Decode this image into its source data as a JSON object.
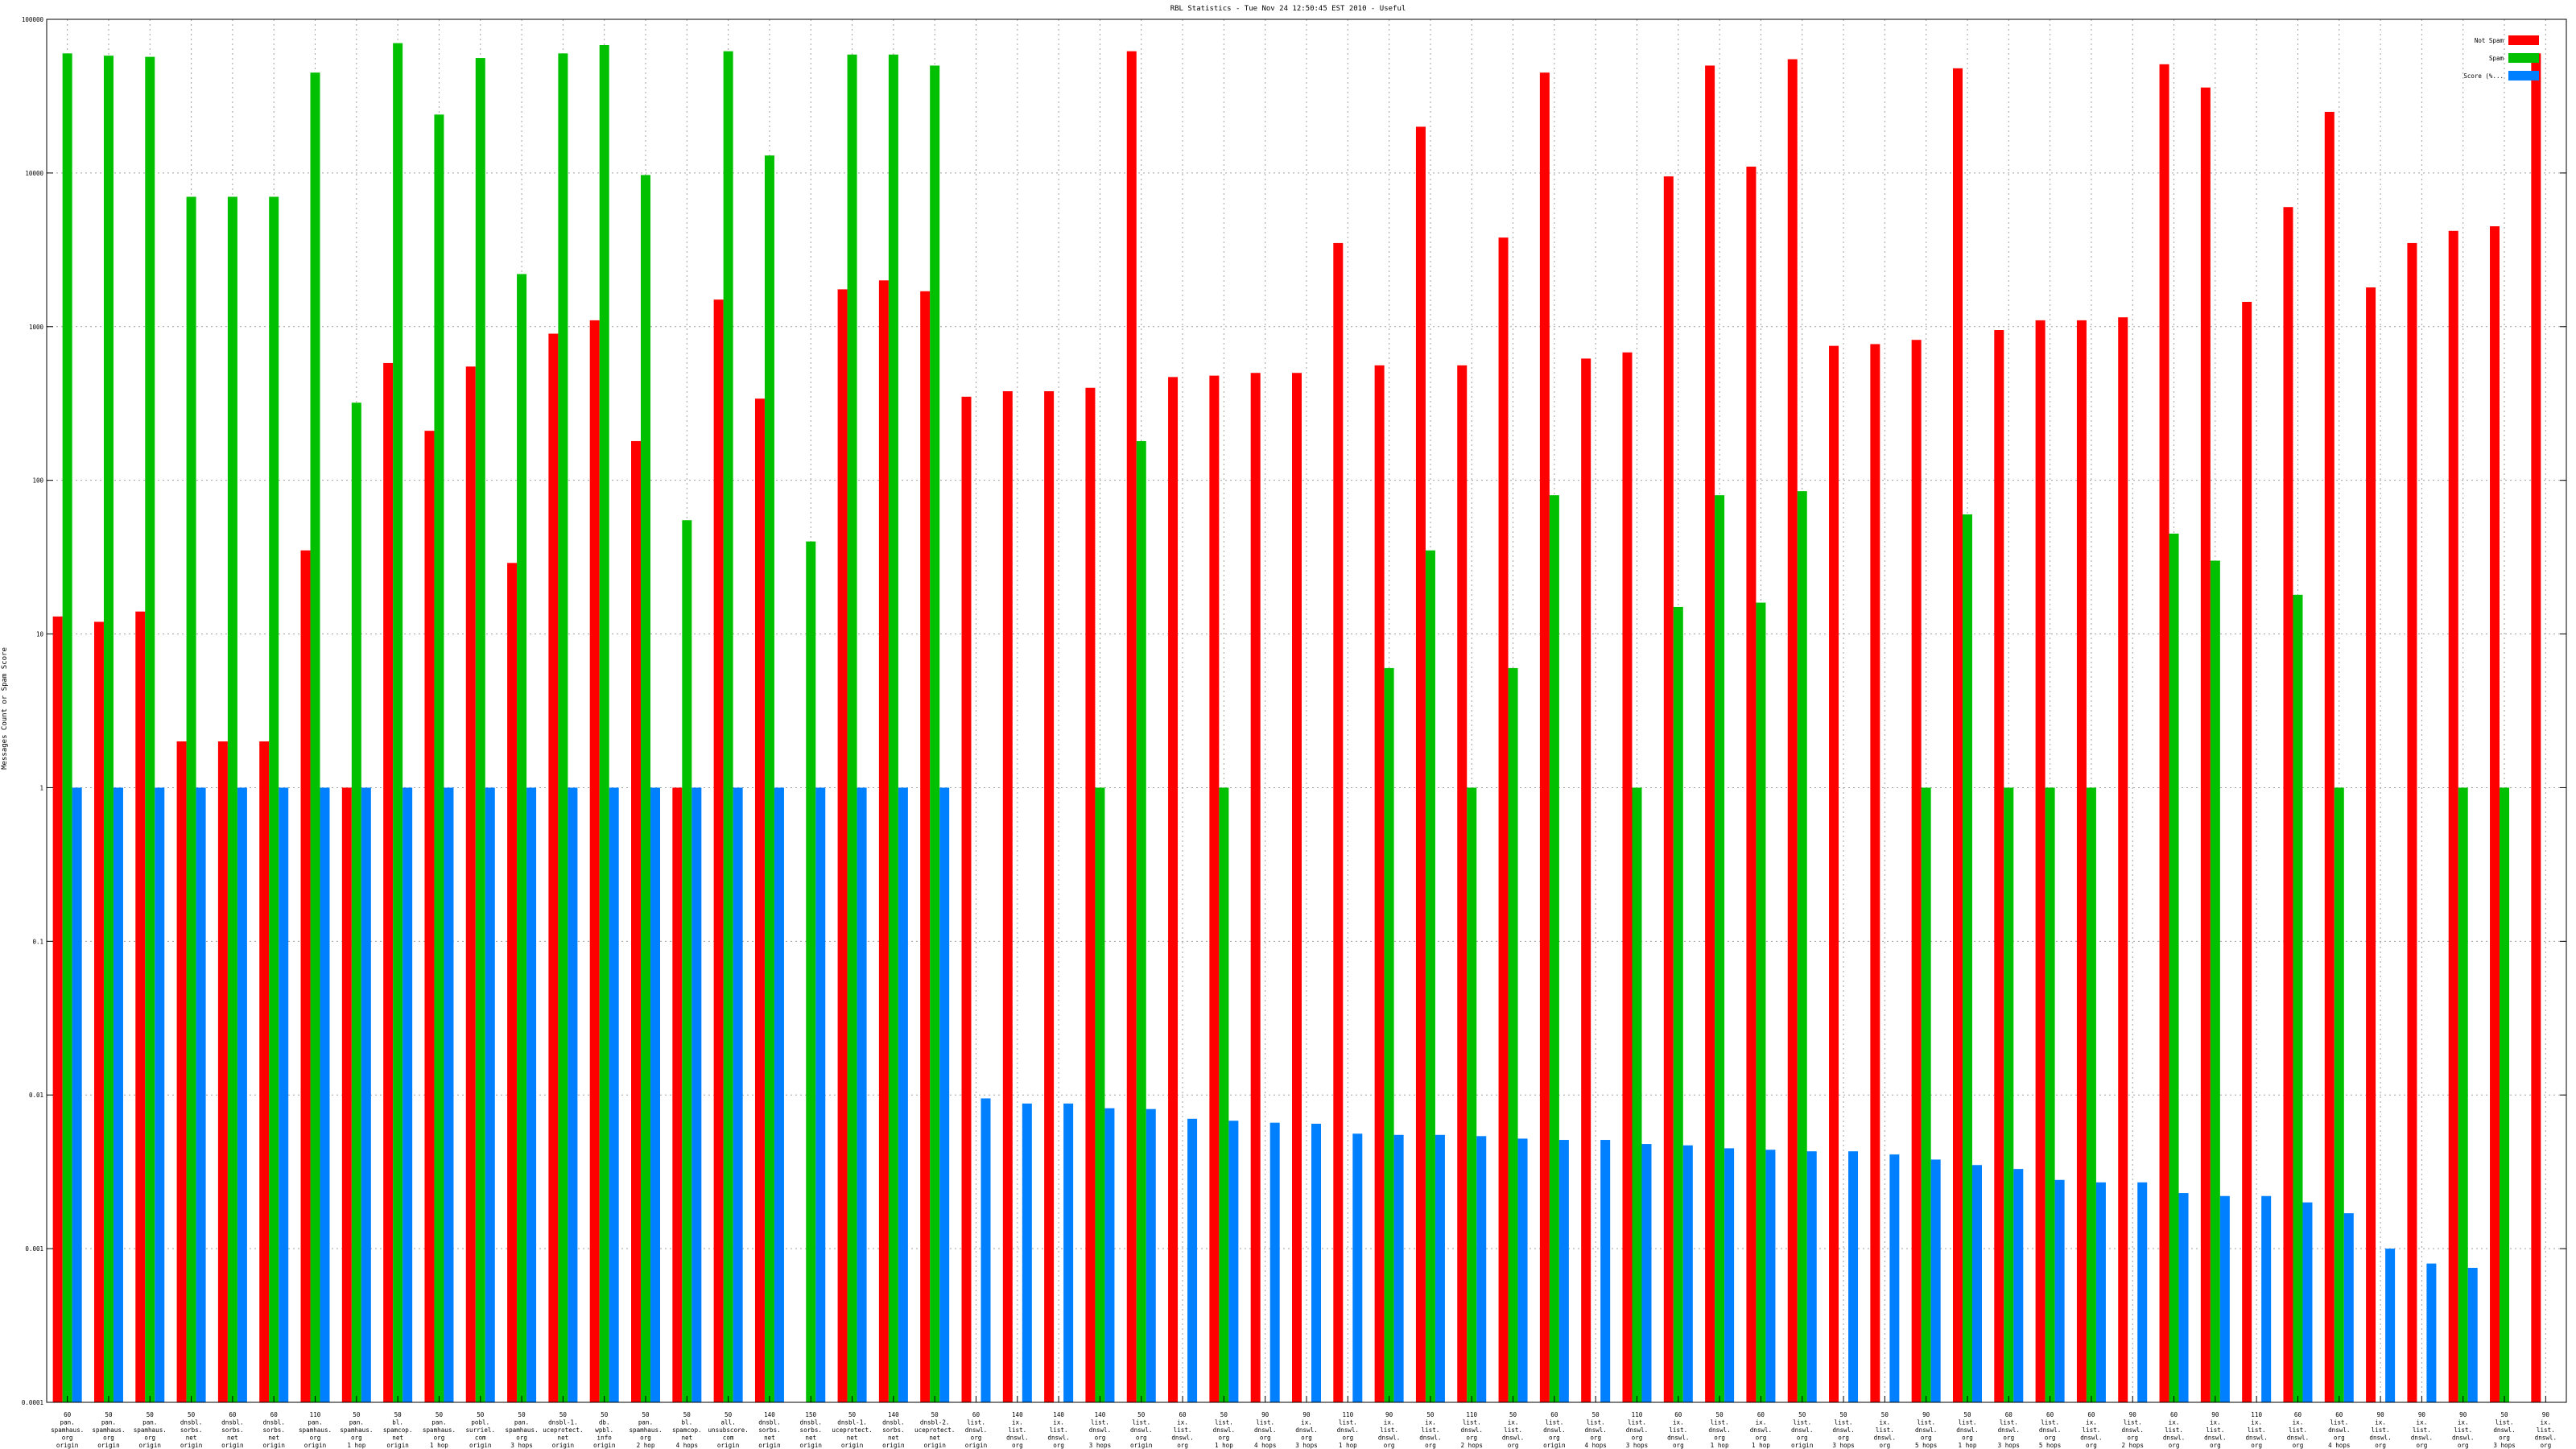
{
  "chart_data": {
    "type": "bar",
    "title": "RBL Statistics - Tue Nov 24 12:50:45 EST 2010 - Useful",
    "xlabel": "",
    "ylabel": "Messages Count or Spam Score",
    "scale": "log",
    "ylim": [
      0.0001,
      100000
    ],
    "yticks": [
      "0.0001",
      "0.001",
      "0.01",
      "0.1",
      "1",
      "10",
      "100",
      "1000",
      "10000",
      "100000"
    ],
    "grid": true,
    "legend_position": "top-right",
    "colors": [
      "#ff0000",
      "#00c000",
      "#0080ff"
    ],
    "series": [
      {
        "name": "Not Spam",
        "values": [
          13,
          12,
          14,
          2,
          2,
          2,
          35,
          1,
          580,
          210,
          550,
          29,
          900,
          1100,
          180,
          1,
          1500,
          340,
          0,
          1750,
          2000,
          1700,
          350,
          380,
          380,
          400,
          62000,
          470,
          480,
          500,
          500,
          3500,
          560,
          20000,
          560,
          3800,
          45000,
          620,
          680,
          9500,
          50000,
          11000,
          55000,
          750,
          770,
          820,
          48000,
          950,
          1100,
          1100,
          1150,
          51000,
          36000,
          1450,
          6000,
          25000,
          1800,
          3500,
          4200,
          4500,
          60000
        ]
      },
      {
        "name": "Spam",
        "values": [
          60000,
          58000,
          57000,
          7000,
          7000,
          7000,
          45000,
          320,
          70000,
          24000,
          56000,
          2200,
          60000,
          68000,
          9700,
          55,
          62000,
          13000,
          40,
          59000,
          59000,
          50000,
          0,
          0,
          0,
          1,
          180,
          0,
          1,
          0,
          0,
          0,
          6,
          35,
          1,
          6,
          80,
          0,
          1,
          15,
          80,
          16,
          85,
          0,
          0,
          1,
          60,
          1,
          1,
          1,
          0,
          45,
          30,
          0,
          18,
          1,
          0,
          0,
          1,
          1,
          0
        ]
      },
      {
        "name": "Score (%...",
        "values": [
          1,
          1,
          1,
          1,
          1,
          1,
          1,
          1,
          1,
          1,
          1,
          1,
          1,
          1,
          1,
          1,
          1,
          1,
          1,
          1,
          1,
          1,
          0.0095,
          0.0088,
          0.0088,
          0.0082,
          0.0081,
          0.007,
          0.0068,
          0.0066,
          0.0065,
          0.0056,
          0.0055,
          0.0055,
          0.0054,
          0.0052,
          0.0051,
          0.0051,
          0.0048,
          0.0047,
          0.0045,
          0.0044,
          0.0043,
          0.0043,
          0.0041,
          0.0038,
          0.0035,
          0.0033,
          0.0028,
          0.0027,
          0.0027,
          0.0023,
          0.0022,
          0.0022,
          0.002,
          0.0017,
          0.001,
          0.0008,
          0.00075,
          0,
          0
        ]
      }
    ],
    "categories": [
      [
        "60",
        "pan.",
        "spamhaus.",
        "org",
        "origin"
      ],
      [
        "50",
        "pan.",
        "spamhaus.",
        "org",
        "origin"
      ],
      [
        "50",
        "pan.",
        "spamhaus.",
        "org",
        "origin"
      ],
      [
        "50",
        "dnsbl.",
        "sorbs.",
        "net",
        "origin"
      ],
      [
        "60",
        "dnsbl.",
        "sorbs.",
        "net",
        "origin"
      ],
      [
        "60",
        "dnsbl.",
        "sorbs.",
        "net",
        "origin"
      ],
      [
        "110",
        "pan.",
        "spamhaus.",
        "org",
        "origin"
      ],
      [
        "50",
        "pan.",
        "spamhaus.",
        "org",
        "1 hop"
      ],
      [
        "50",
        "bl.",
        "spamcop.",
        "net",
        "origin"
      ],
      [
        "50",
        "pan.",
        "spamhaus.",
        "org",
        "1 hop"
      ],
      [
        "50",
        "pobl.",
        "surriel.",
        "com",
        "origin"
      ],
      [
        "50",
        "pan.",
        "spamhaus.",
        "org",
        "3 hops"
      ],
      [
        "50",
        "dnsbl-1.",
        "uceprotect.",
        "net",
        "origin"
      ],
      [
        "50",
        "db.",
        "wpbl.",
        "info",
        "origin"
      ],
      [
        "50",
        "pan.",
        "spamhaus.",
        "org",
        "2 hop"
      ],
      [
        "50",
        "bl.",
        "spamcop.",
        "net",
        "4 hops"
      ],
      [
        "50",
        "all.",
        "unsubscore.",
        "com",
        "origin"
      ],
      [
        "140",
        "dnsbl.",
        "sorbs.",
        "net",
        "origin"
      ],
      [
        "150",
        "dnsbl.",
        "sorbs.",
        "net",
        "origin"
      ],
      [
        "50",
        "dnsbl-1.",
        "uceprotect.",
        "net",
        "origin"
      ],
      [
        "140",
        "dnsbl.",
        "sorbs.",
        "net",
        "origin"
      ],
      [
        "50",
        "dnsbl-2.",
        "uceprotect.",
        "net",
        "origin"
      ],
      [
        "60",
        "list.",
        "dnswl.",
        "org",
        "origin"
      ],
      [
        "140",
        "ix.",
        "list.",
        "dnswl.",
        "org",
        "1 hop"
      ],
      [
        "140",
        "ix.",
        "list.",
        "dnswl.",
        "org",
        "1 hop"
      ],
      [
        "140",
        "list.",
        "dnswl.",
        "org",
        "3 hops"
      ],
      [
        "50",
        "list.",
        "dnswl.",
        "org",
        "origin"
      ],
      [
        "60",
        "ix.",
        "list.",
        "dnswl.",
        "org",
        "1 hop"
      ],
      [
        "50",
        "list.",
        "dnswl.",
        "org",
        "1 hop"
      ],
      [
        "90",
        "list.",
        "dnswl.",
        "org",
        "4 hops"
      ],
      [
        "90",
        "ix.",
        "dnswl.",
        "org",
        "3 hops"
      ],
      [
        "110",
        "list.",
        "dnswl.",
        "org",
        "1 hop"
      ],
      [
        "90",
        "ix.",
        "list.",
        "dnswl.",
        "org",
        "origin"
      ],
      [
        "50",
        "ix.",
        "list.",
        "dnswl.",
        "org",
        "origin"
      ],
      [
        "110",
        "list.",
        "dnswl.",
        "org",
        "2 hops"
      ],
      [
        "50",
        "ix.",
        "list.",
        "dnswl.",
        "org",
        "2 hops"
      ],
      [
        "60",
        "list.",
        "dnswl.",
        "org",
        "origin"
      ],
      [
        "50",
        "list.",
        "dnswl.",
        "org",
        "4 hops"
      ],
      [
        "110",
        "list.",
        "dnswl.",
        "org",
        "3 hops"
      ],
      [
        "60",
        "ix.",
        "list.",
        "dnswl.",
        "org",
        "1 hop"
      ],
      [
        "50",
        "list.",
        "dnswl.",
        "org",
        "1 hop"
      ],
      [
        "60",
        "ix.",
        "dnswl.",
        "org",
        "1 hop"
      ],
      [
        "50",
        "list.",
        "dnswl.",
        "org",
        "origin"
      ],
      [
        "50",
        "list.",
        "dnswl.",
        "org",
        "3 hops"
      ],
      [
        "50",
        "ix.",
        "list.",
        "dnswl.",
        "org",
        "4 hops"
      ],
      [
        "90",
        "list.",
        "dnswl.",
        "org",
        "5 hops"
      ],
      [
        "50",
        "list.",
        "dnswl.",
        "org",
        "1 hop"
      ],
      [
        "60",
        "list.",
        "dnswl.",
        "org",
        "3 hops"
      ],
      [
        "60",
        "list.",
        "dnswl.",
        "org",
        "5 hops"
      ],
      [
        "60",
        "ix.",
        "list.",
        "dnswl.",
        "org",
        "2 hops"
      ],
      [
        "90",
        "list.",
        "dnswl.",
        "org",
        "2 hops"
      ],
      [
        "60",
        "ix.",
        "list.",
        "dnswl.",
        "org",
        "1 hop"
      ],
      [
        "90",
        "ix.",
        "list.",
        "dnswl.",
        "org",
        "1 hop"
      ],
      [
        "110",
        "ix.",
        "list.",
        "dnswl.",
        "org",
        "1 hop"
      ],
      [
        "60",
        "ix.",
        "list.",
        "dnswl.",
        "org",
        "2 hops"
      ],
      [
        "60",
        "list.",
        "dnswl.",
        "org",
        "4 hops"
      ],
      [
        "90",
        "ix.",
        "list.",
        "dnswl.",
        "org",
        "5 hops"
      ],
      [
        "90",
        "ix.",
        "list.",
        "dnswl.",
        "org",
        "3 hops"
      ],
      [
        "90",
        "ix.",
        "list.",
        "dnswl.",
        "org",
        "3 hops"
      ],
      [
        "50",
        "list.",
        "dnswl.",
        "org",
        "3 hops"
      ],
      [
        "90",
        "ix.",
        "list.",
        "dnswl.",
        "org",
        "5 hops"
      ]
    ]
  }
}
